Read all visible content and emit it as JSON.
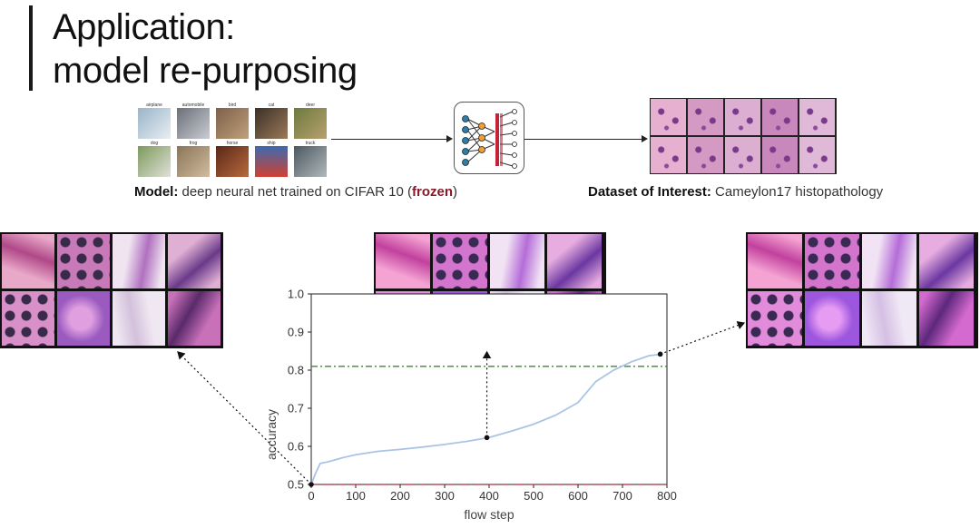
{
  "title": "Application:",
  "subtitle": "model re-purposing",
  "cifar_labels": [
    "airplane",
    "automobile",
    "bird",
    "cat",
    "deer",
    "dog",
    "frog",
    "horse",
    "ship",
    "truck"
  ],
  "caption_model": {
    "bold": "Model:",
    "text": " deep neural net trained on CIFAR 10 (",
    "frozen": "frozen",
    "end": ")"
  },
  "caption_dataset": {
    "bold": "Dataset of Interest:",
    "text": " Cameylon17 histopathology"
  },
  "colors": {
    "curve": "#a9c4e4",
    "green_line": "#3a8a2e",
    "red_line": "#c3223a",
    "frozen": "#8a1a2a",
    "tissue_pink": "#d98fb8",
    "tissue_purple": "#8a4cb0"
  },
  "chart_data": {
    "type": "line",
    "xlabel": "flow step",
    "ylabel": "accuracy",
    "xlim": [
      0,
      800
    ],
    "ylim": [
      0.5,
      1.0
    ],
    "xticks": [
      0,
      100,
      200,
      300,
      400,
      500,
      600,
      700,
      800
    ],
    "yticks": [
      0.5,
      0.6,
      0.7,
      0.8,
      0.9,
      1.0
    ],
    "series": [
      {
        "x": [
          0,
          10,
          20,
          40,
          70,
          100,
          150,
          200,
          250,
          300,
          350,
          400,
          450,
          500,
          550,
          600,
          640,
          680,
          720,
          760,
          790
        ],
        "y": [
          0.5,
          0.53,
          0.555,
          0.56,
          0.57,
          0.578,
          0.587,
          0.592,
          0.598,
          0.605,
          0.613,
          0.623,
          0.64,
          0.658,
          0.682,
          0.715,
          0.77,
          0.8,
          0.822,
          0.838,
          0.842
        ]
      }
    ],
    "hlines": [
      {
        "y": 0.81,
        "style": "dash-dot",
        "color": "#3a8a2e"
      },
      {
        "y": 0.5,
        "style": "dash-dot",
        "color": "#c3223a"
      }
    ],
    "markers": [
      {
        "x": 0,
        "y": 0.5
      },
      {
        "x": 395,
        "y": 0.623
      },
      {
        "x": 785,
        "y": 0.842
      }
    ]
  }
}
